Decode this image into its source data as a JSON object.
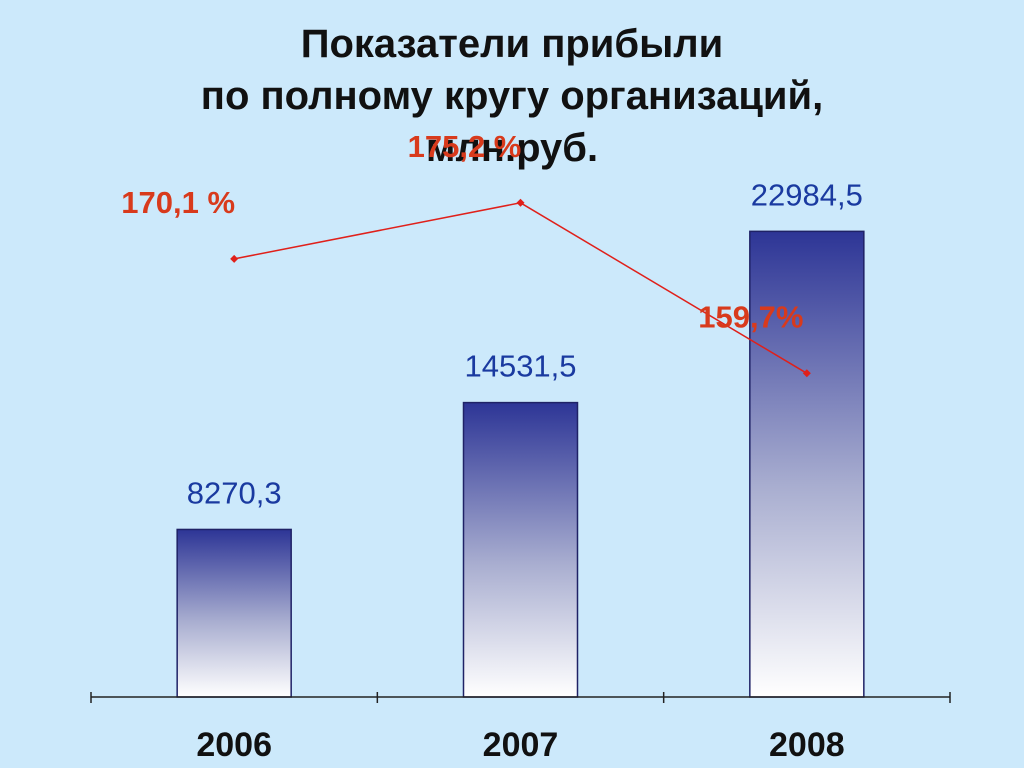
{
  "title": {
    "line1": "Показатели прибыли",
    "line2": "по полному кругу организаций,",
    "line3": "млн.руб."
  },
  "chart_data": {
    "type": "bar",
    "categories": [
      "2006",
      "2007",
      "2008"
    ],
    "values": [
      8270.3,
      14531.5,
      22984.5
    ],
    "value_labels": [
      "8270,3",
      "14531,5",
      "22984,5"
    ],
    "ylim": [
      0,
      27000
    ],
    "line_series": {
      "values": [
        170.1,
        175.2,
        159.7
      ],
      "labels": [
        "170,1 %",
        "175,2 %",
        "159,7%"
      ],
      "color": "#e0201a"
    },
    "colors": {
      "bar_top": "#2d3596",
      "bar_bottom": "#ffffff",
      "value_label": "#1a3aa0",
      "line_label": "#d83a1c"
    },
    "grid": false
  }
}
